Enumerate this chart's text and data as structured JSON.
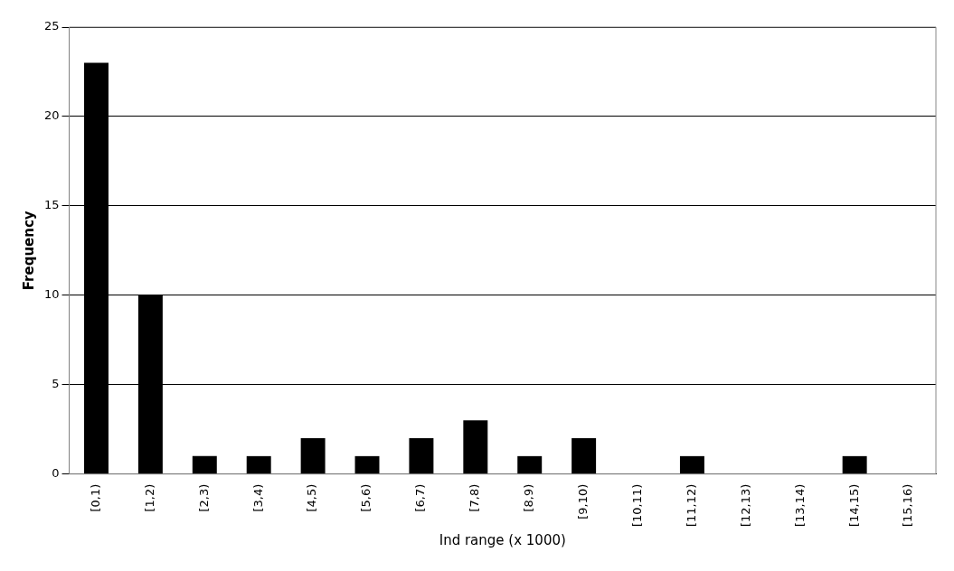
{
  "chart_data": {
    "type": "bar",
    "xlabel": "Ind range (x 1000)",
    "ylabel": "Frequency",
    "categories": [
      "[0,1)",
      "[1,2)",
      "[2,3)",
      "[3,4)",
      "[4,5)",
      "[5,6)",
      "[6,7)",
      "[7,8)",
      "[8,9)",
      "[9,10)",
      "[10,11)",
      "[11,12)",
      "[12,13)",
      "[13,14)",
      "[14,15)",
      "[15,16)"
    ],
    "values": [
      23,
      10,
      1,
      1,
      2,
      1,
      2,
      3,
      1,
      2,
      0,
      1,
      0,
      0,
      1,
      0
    ],
    "color": "#000000",
    "ylim": [
      0,
      25
    ],
    "yticks": [
      0,
      5,
      10,
      15,
      20,
      25
    ],
    "grid": "y",
    "legend": false
  }
}
